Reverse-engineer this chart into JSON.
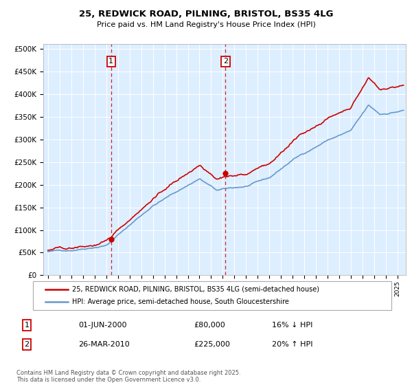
{
  "title_line1": "25, REDWICK ROAD, PILNING, BRISTOL, BS35 4LG",
  "title_line2": "Price paid vs. HM Land Registry's House Price Index (HPI)",
  "legend_line1": "25, REDWICK ROAD, PILNING, BRISTOL, BS35 4LG (semi-detached house)",
  "legend_line2": "HPI: Average price, semi-detached house, South Gloucestershire",
  "sale1_label": "1",
  "sale1_date": "01-JUN-2000",
  "sale1_price": "£80,000",
  "sale1_hpi": "16% ↓ HPI",
  "sale2_label": "2",
  "sale2_date": "26-MAR-2010",
  "sale2_price": "£225,000",
  "sale2_hpi": "20% ↑ HPI",
  "footnote": "Contains HM Land Registry data © Crown copyright and database right 2025.\nThis data is licensed under the Open Government Licence v3.0.",
  "red_line_color": "#cc0000",
  "blue_line_color": "#6699cc",
  "bg_color": "#ddeeff",
  "vline_color": "#cc0000",
  "marker1_year": 2000.42,
  "marker1_price": 80000,
  "marker2_year": 2010.23,
  "marker2_price": 225000,
  "ylim": [
    0,
    510000
  ],
  "yticks": [
    0,
    50000,
    100000,
    150000,
    200000,
    250000,
    300000,
    350000,
    400000,
    450000,
    500000
  ]
}
